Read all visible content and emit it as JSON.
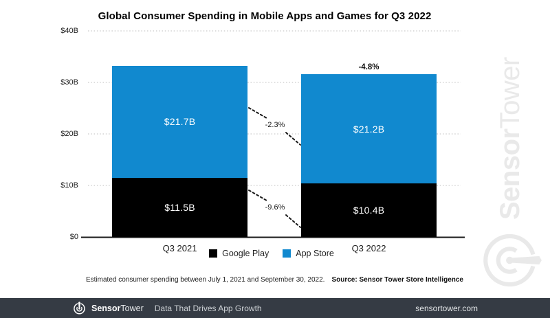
{
  "title": "Global Consumer Spending in Mobile Apps and Games for Q3 2022",
  "chart_data": {
    "type": "bar",
    "subtype": "stacked-column",
    "categories": [
      "Q3 2021",
      "Q3 2022"
    ],
    "series": [
      {
        "name": "Google Play",
        "color": "#000000",
        "values": [
          11.5,
          10.4
        ],
        "labels": [
          "$11.5B",
          "$10.4B"
        ]
      },
      {
        "name": "App Store",
        "color": "#1189cf",
        "values": [
          21.7,
          21.2
        ],
        "labels": [
          "$21.7B",
          "$21.2B"
        ]
      }
    ],
    "totals": [
      33.2,
      31.6
    ],
    "annotations": {
      "app_store_change": "-2.3%",
      "google_play_change": "-9.6%",
      "total_change": "-4.8%"
    },
    "yticks": [
      {
        "label": "$0",
        "value": 0
      },
      {
        "label": "$10B",
        "value": 10
      },
      {
        "label": "$20B",
        "value": 20
      },
      {
        "label": "$30B",
        "value": 30
      },
      {
        "label": "$40B",
        "value": 40
      }
    ],
    "ylim": [
      0,
      40
    ],
    "ylabel": "",
    "xlabel": "",
    "grid": "dotted-horizontal",
    "legend_position": "bottom"
  },
  "footnote": "Estimated consumer spending between July 1, 2021 and September 30, 2022.",
  "source": "Source: Sensor Tower Store Intelligence",
  "watermark": {
    "brand_bold": "Sensor",
    "brand_light": "Tower"
  },
  "footer": {
    "brand_bold": "Sensor",
    "brand_light": "Tower",
    "tagline": "Data That Drives App Growth",
    "url": "sensortower.com"
  },
  "colors": {
    "app_store_blue": "#1189cf",
    "google_play_black": "#000000",
    "footer_bg": "#353b44",
    "watermark_gray": "#e9e9e9",
    "gridline_gray": "#c9c9c9"
  }
}
